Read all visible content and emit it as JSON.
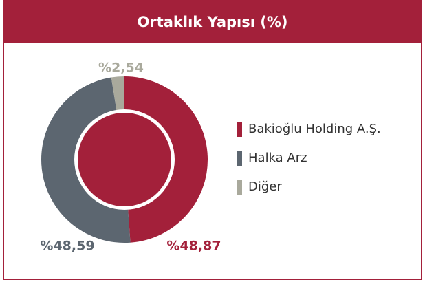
{
  "chart_data": {
    "type": "pie",
    "title": "Ortaklık Yapısı (%)",
    "categories": [
      "Bakioğlu Holding A.Ş.",
      "Halka Arz",
      "Diğer"
    ],
    "values": [
      48.87,
      48.59,
      2.54
    ],
    "value_labels": [
      "%48,87",
      "%48,59",
      "%2,54"
    ],
    "colors": [
      "#a3203a",
      "#5c6670",
      "#a9a99c"
    ],
    "donut": true,
    "legend": "right"
  }
}
